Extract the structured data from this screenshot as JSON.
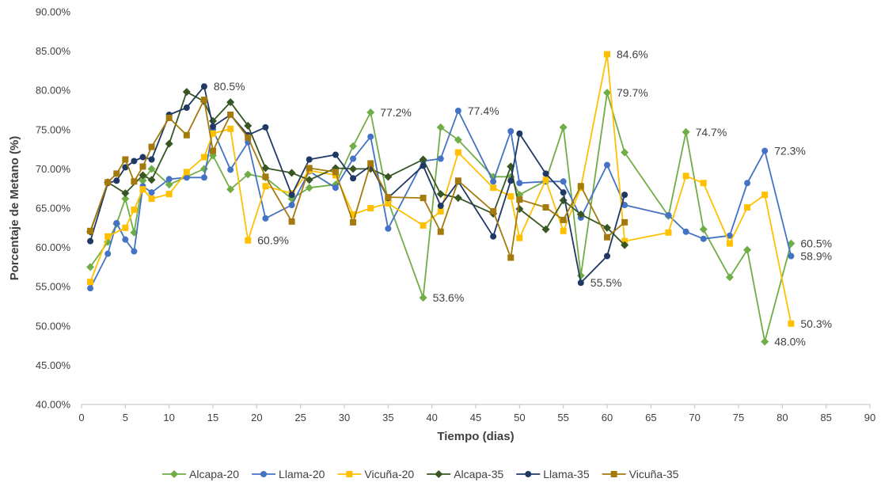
{
  "chart_data": {
    "type": "line",
    "title": "",
    "xlabel": "Tiempo (dias)",
    "ylabel": "Porcentaje de Metano (%)",
    "xlim": [
      0,
      90
    ],
    "ylim": [
      40,
      90
    ],
    "x_ticks": [
      0,
      5,
      10,
      15,
      20,
      25,
      30,
      35,
      40,
      45,
      50,
      55,
      60,
      65,
      70,
      75,
      80,
      85,
      90
    ],
    "y_ticks": [
      40,
      45,
      50,
      55,
      60,
      65,
      70,
      75,
      80,
      85,
      90
    ],
    "x_tick_labels": [
      "0",
      "5",
      "10",
      "15",
      "20",
      "25",
      "30",
      "35",
      "40",
      "45",
      "50",
      "55",
      "60",
      "65",
      "70",
      "75",
      "80",
      "85",
      "90"
    ],
    "y_tick_labels": [
      "40.00%",
      "45.00%",
      "50.00%",
      "55.00%",
      "60.00%",
      "65.00%",
      "70.00%",
      "75.00%",
      "80.00%",
      "85.00%",
      "90.00%"
    ],
    "grid": false,
    "legend_position": "bottom",
    "series": [
      {
        "name": "Alcapa-20",
        "color": "#70AD47",
        "marker": "diamond",
        "x": [
          1,
          3,
          4,
          5,
          6,
          7,
          8,
          10,
          12,
          14,
          15,
          17,
          19,
          21,
          24,
          26,
          29,
          31,
          33,
          35,
          39,
          41,
          43,
          47,
          49,
          50,
          53,
          55,
          57,
          60,
          62,
          67,
          69,
          71,
          74,
          76,
          78,
          81
        ],
        "y": [
          57.5,
          60.7,
          63.0,
          66.2,
          61.9,
          68.5,
          70.0,
          68.0,
          69.0,
          70.0,
          71.7,
          67.4,
          69.3,
          68.9,
          66.2,
          67.6,
          68.0,
          72.9,
          77.2,
          65.9,
          53.6,
          75.3,
          73.7,
          69.0,
          69.0,
          66.7,
          68.5,
          75.3,
          56.4,
          79.7,
          72.1,
          64.0,
          74.7,
          62.3,
          56.2,
          59.7,
          48.0,
          60.5
        ]
      },
      {
        "name": "Llama-20",
        "color": "#4472C4",
        "marker": "circle",
        "x": [
          1,
          3,
          4,
          5,
          6,
          7,
          8,
          10,
          12,
          14,
          15,
          17,
          19,
          21,
          24,
          26,
          29,
          31,
          33,
          35,
          39,
          41,
          43,
          47,
          49,
          50,
          53,
          55,
          57,
          60,
          62,
          67,
          69,
          71,
          74,
          76,
          78,
          81
        ],
        "y": [
          54.8,
          59.2,
          63.1,
          61.0,
          59.5,
          67.8,
          67.0,
          68.7,
          68.9,
          68.9,
          75.0,
          69.9,
          73.4,
          63.7,
          65.4,
          69.7,
          67.6,
          71.3,
          74.1,
          62.4,
          71.0,
          71.3,
          77.4,
          68.4,
          74.8,
          68.2,
          68.4,
          68.4,
          63.8,
          70.5,
          65.4,
          64.1,
          62.0,
          61.1,
          61.5,
          68.2,
          72.3,
          58.9
        ]
      },
      {
        "name": "Vicuña-20",
        "color": "#FFC000",
        "marker": "square",
        "x": [
          1,
          3,
          5,
          6,
          7,
          8,
          10,
          12,
          14,
          15,
          17,
          19,
          21,
          24,
          26,
          29,
          31,
          33,
          35,
          39,
          41,
          43,
          47,
          49,
          50,
          53,
          55,
          57,
          60,
          62,
          67,
          69,
          71,
          74,
          76,
          78,
          81
        ],
        "y": [
          55.6,
          61.4,
          62.5,
          64.8,
          67.4,
          66.2,
          66.8,
          69.6,
          71.5,
          74.5,
          75.1,
          60.9,
          67.8,
          66.9,
          69.8,
          69.2,
          64.2,
          65.0,
          65.6,
          62.8,
          64.6,
          72.1,
          67.6,
          66.5,
          61.2,
          68.6,
          62.1,
          67.6,
          84.6,
          60.8,
          61.9,
          69.1,
          68.2,
          60.5,
          65.1,
          66.7,
          50.3
        ]
      },
      {
        "name": "Alcapa-35",
        "color": "#375623",
        "marker": "diamond",
        "x": [
          1,
          3,
          5,
          7,
          8,
          10,
          12,
          14,
          15,
          17,
          19,
          21,
          24,
          26,
          29,
          31,
          33,
          35,
          39,
          41,
          43,
          47,
          49,
          50,
          53,
          55,
          57,
          60,
          62
        ],
        "y": [
          62.0,
          68.3,
          66.9,
          69.2,
          68.6,
          73.2,
          79.8,
          78.6,
          76.1,
          78.5,
          75.5,
          70.1,
          69.5,
          68.6,
          70.1,
          70.0,
          70.0,
          69.0,
          71.2,
          66.8,
          66.3,
          64.3,
          70.3,
          64.9,
          62.3,
          66.0,
          64.2,
          62.5,
          60.3
        ]
      },
      {
        "name": "Llama-35",
        "color": "#1F3864",
        "marker": "circle",
        "x": [
          1,
          3,
          4,
          5,
          6,
          7,
          8,
          10,
          12,
          14,
          15,
          17,
          19,
          21,
          24,
          26,
          29,
          31,
          33,
          35,
          39,
          41,
          43,
          47,
          49,
          50,
          53,
          55,
          57,
          60,
          62
        ],
        "y": [
          60.8,
          68.2,
          68.5,
          70.2,
          71.0,
          71.5,
          71.2,
          76.9,
          77.8,
          80.5,
          75.4,
          76.9,
          74.3,
          75.3,
          66.7,
          71.2,
          71.8,
          68.8,
          70.4,
          66.3,
          70.4,
          65.3,
          68.4,
          61.4,
          68.5,
          74.5,
          69.4,
          67.0,
          55.5,
          58.9,
          66.7
        ]
      },
      {
        "name": "Vicuña-35",
        "color": "#A47A0C",
        "marker": "square",
        "x": [
          1,
          3,
          4,
          5,
          6,
          7,
          8,
          10,
          12,
          14,
          15,
          17,
          19,
          21,
          24,
          26,
          29,
          31,
          33,
          35,
          39,
          41,
          43,
          47,
          49,
          50,
          53,
          55,
          57,
          60,
          62
        ],
        "y": [
          62.1,
          68.3,
          69.4,
          71.2,
          68.4,
          70.3,
          72.8,
          76.5,
          74.3,
          78.8,
          72.3,
          76.9,
          74.0,
          69.0,
          63.3,
          70.1,
          69.6,
          63.2,
          70.7,
          66.4,
          66.3,
          62.0,
          68.5,
          64.6,
          58.7,
          66.1,
          65.1,
          63.5,
          67.8,
          61.3,
          63.2
        ]
      }
    ],
    "annotations": [
      {
        "x": 14,
        "y": 80.5,
        "text": "80.5%"
      },
      {
        "x": 19,
        "y": 60.9,
        "text": "60.9%"
      },
      {
        "x": 33,
        "y": 77.2,
        "text": "77.2%"
      },
      {
        "x": 39,
        "y": 53.6,
        "text": "53.6%"
      },
      {
        "x": 43,
        "y": 77.4,
        "text": "77.4%"
      },
      {
        "x": 57,
        "y": 55.5,
        "text": "55.5%"
      },
      {
        "x": 60,
        "y": 84.6,
        "text": "84.6%"
      },
      {
        "x": 60,
        "y": 79.7,
        "text": "79.7%"
      },
      {
        "x": 69,
        "y": 74.7,
        "text": "74.7%"
      },
      {
        "x": 78,
        "y": 72.3,
        "text": "72.3%"
      },
      {
        "x": 81,
        "y": 60.5,
        "text": "60.5%"
      },
      {
        "x": 81,
        "y": 58.9,
        "text": "58.9%"
      },
      {
        "x": 81,
        "y": 50.3,
        "text": "50.3%"
      },
      {
        "x": 78,
        "y": 48.0,
        "text": "48.0%"
      }
    ]
  }
}
